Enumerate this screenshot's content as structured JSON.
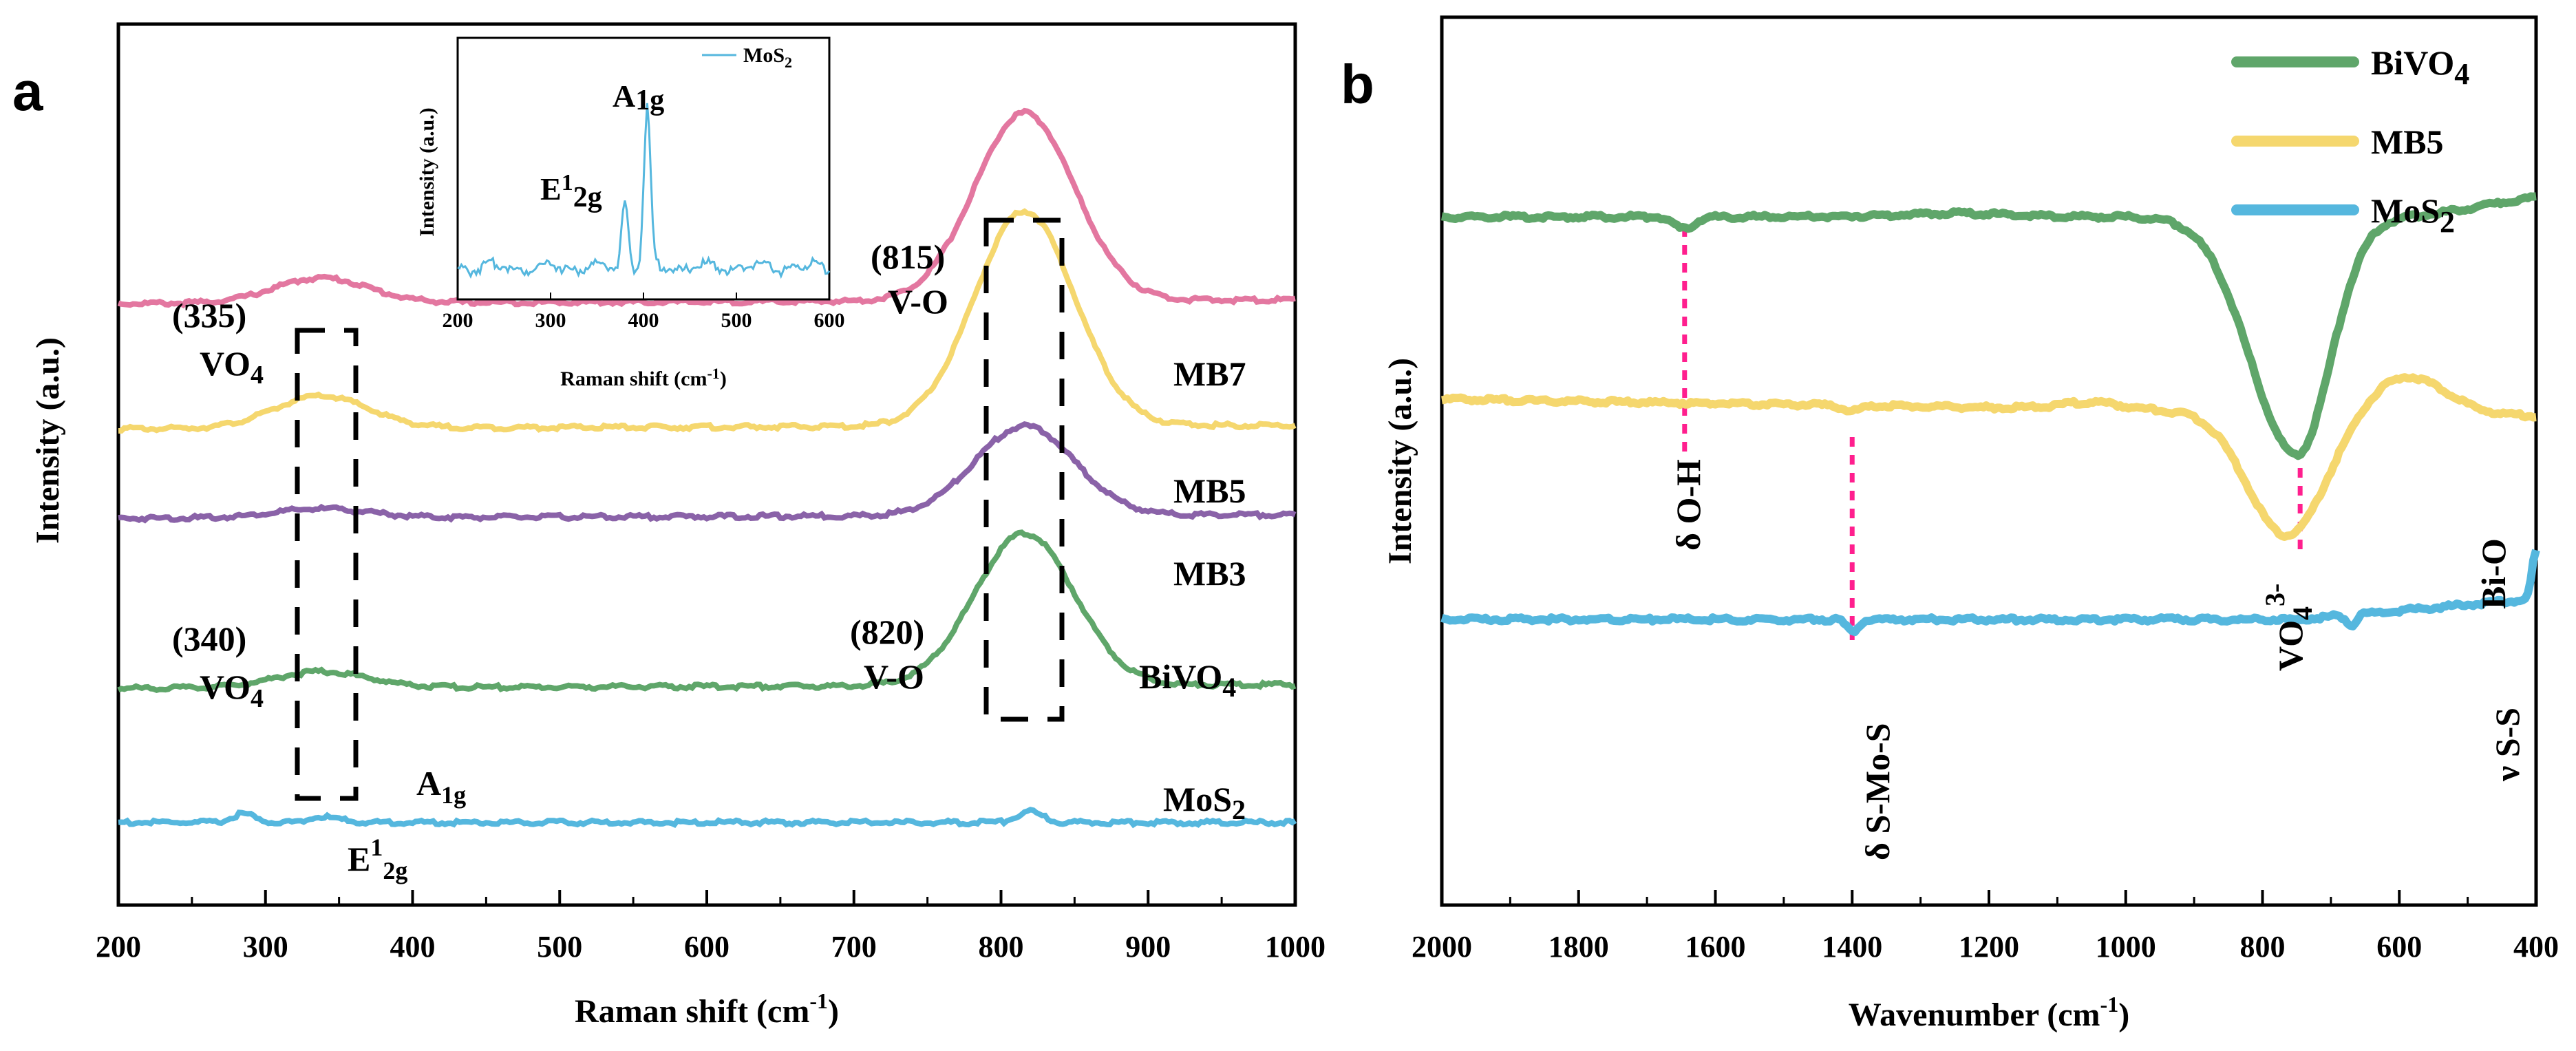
{
  "chart_data": [
    {
      "type": "line",
      "panel": "a",
      "xlabel": "Raman shift (cm-1)",
      "xlabel_parts": [
        "Raman shift (cm",
        "-1",
        ")"
      ],
      "ylabel": "Intensity (a.u.)",
      "xlim": [
        200,
        1000
      ],
      "xticks": [
        "200",
        "300",
        "400",
        "500",
        "600",
        "700",
        "800",
        "900",
        "1000"
      ],
      "series": [
        {
          "name": "MB7",
          "color": "#e377a0",
          "offset": 2.9,
          "low": 0.14,
          "high": 1.05
        },
        {
          "name": "MB5",
          "color": "#f5d76e",
          "offset": 2.2,
          "low": 0.18,
          "high": 1.2
        },
        {
          "name": "MB3",
          "color": "#8a62a8",
          "offset": 1.7,
          "low": 0.05,
          "high": 0.5
        },
        {
          "name": "BiVO4",
          "color": "#5fa66a",
          "offset": 0.75,
          "low": 0.09,
          "high": 0.85
        },
        {
          "name": "MoS2",
          "color": "#55b7de",
          "offset": 0.0,
          "low": 0.0,
          "high": 0.1
        }
      ],
      "labels": {
        "mb7": "MB7",
        "mb5": "MB5",
        "mb3": "MB3",
        "bivo4_base": "BiVO",
        "bivo4_sub": "4",
        "mos2_base": "MoS",
        "mos2_sub": "2",
        "ann_335_num": "(335)",
        "ann_335_vo": "VO",
        "ann_335_sub": "4",
        "ann_340_num": "(340)",
        "ann_340_vo": "VO",
        "ann_340_sub": "4",
        "ann_815_num": "(815)",
        "ann_815_vo": "V-O",
        "ann_820_num": "(820)",
        "ann_820_vo": "V-O",
        "a1g_base": "A",
        "a1g_sub": "1g",
        "e12g_base": "E",
        "e12g_sup": "1",
        "e12g_sub": "2g"
      },
      "inset": {
        "xlabel_text": "Raman shift (cm",
        "xlabel_sup": "-1",
        "xlabel_close": ")",
        "ylabel": "Intensity (a.u.)",
        "xlim": [
          200,
          600
        ],
        "xticks": [
          "200",
          "300",
          "400",
          "500",
          "600"
        ],
        "legend_base": "MoS",
        "legend_sub": "2",
        "color": "#55b7de",
        "peaks": [
          {
            "x": 380,
            "label_base": "E",
            "label_sup": "1",
            "label_sub": "2g"
          },
          {
            "x": 404,
            "label_base": "A",
            "label_sub": "1g"
          }
        ]
      }
    },
    {
      "type": "line",
      "panel": "b",
      "xlabel": "Wavenumber (cm-1)",
      "xlabel_parts": [
        "Wavenumber (cm",
        "-1",
        ")"
      ],
      "ylabel": "Intensity (a.u.)",
      "xlim": [
        2000,
        400
      ],
      "xticks": [
        "2000",
        "1800",
        "1600",
        "1400",
        "1200",
        "1000",
        "800",
        "600",
        "400"
      ],
      "series": [
        {
          "name": "BiVO4",
          "color": "#5fa66a"
        },
        {
          "name": "MB5",
          "color": "#f5d76e"
        },
        {
          "name": "MoS2",
          "color": "#55b7de"
        }
      ],
      "legend": [
        {
          "base": "BiVO",
          "sub": "4",
          "color": "#5fa66a"
        },
        {
          "base": "MB5",
          "sub": "",
          "color": "#f5d76e"
        },
        {
          "base": "MoS",
          "sub": "2",
          "color": "#55b7de"
        }
      ],
      "annotations": {
        "oh": "δ O-H",
        "smos": "δ S-Mo-S",
        "vo4_base": "VO",
        "vo4_sub": "4",
        "vo4_sup": "3-",
        "bio": "Bi-O",
        "ss": "ν S-S"
      },
      "marker_lines": [
        1645,
        1400,
        745
      ]
    }
  ],
  "panels": {
    "a": "a",
    "b": "b"
  }
}
